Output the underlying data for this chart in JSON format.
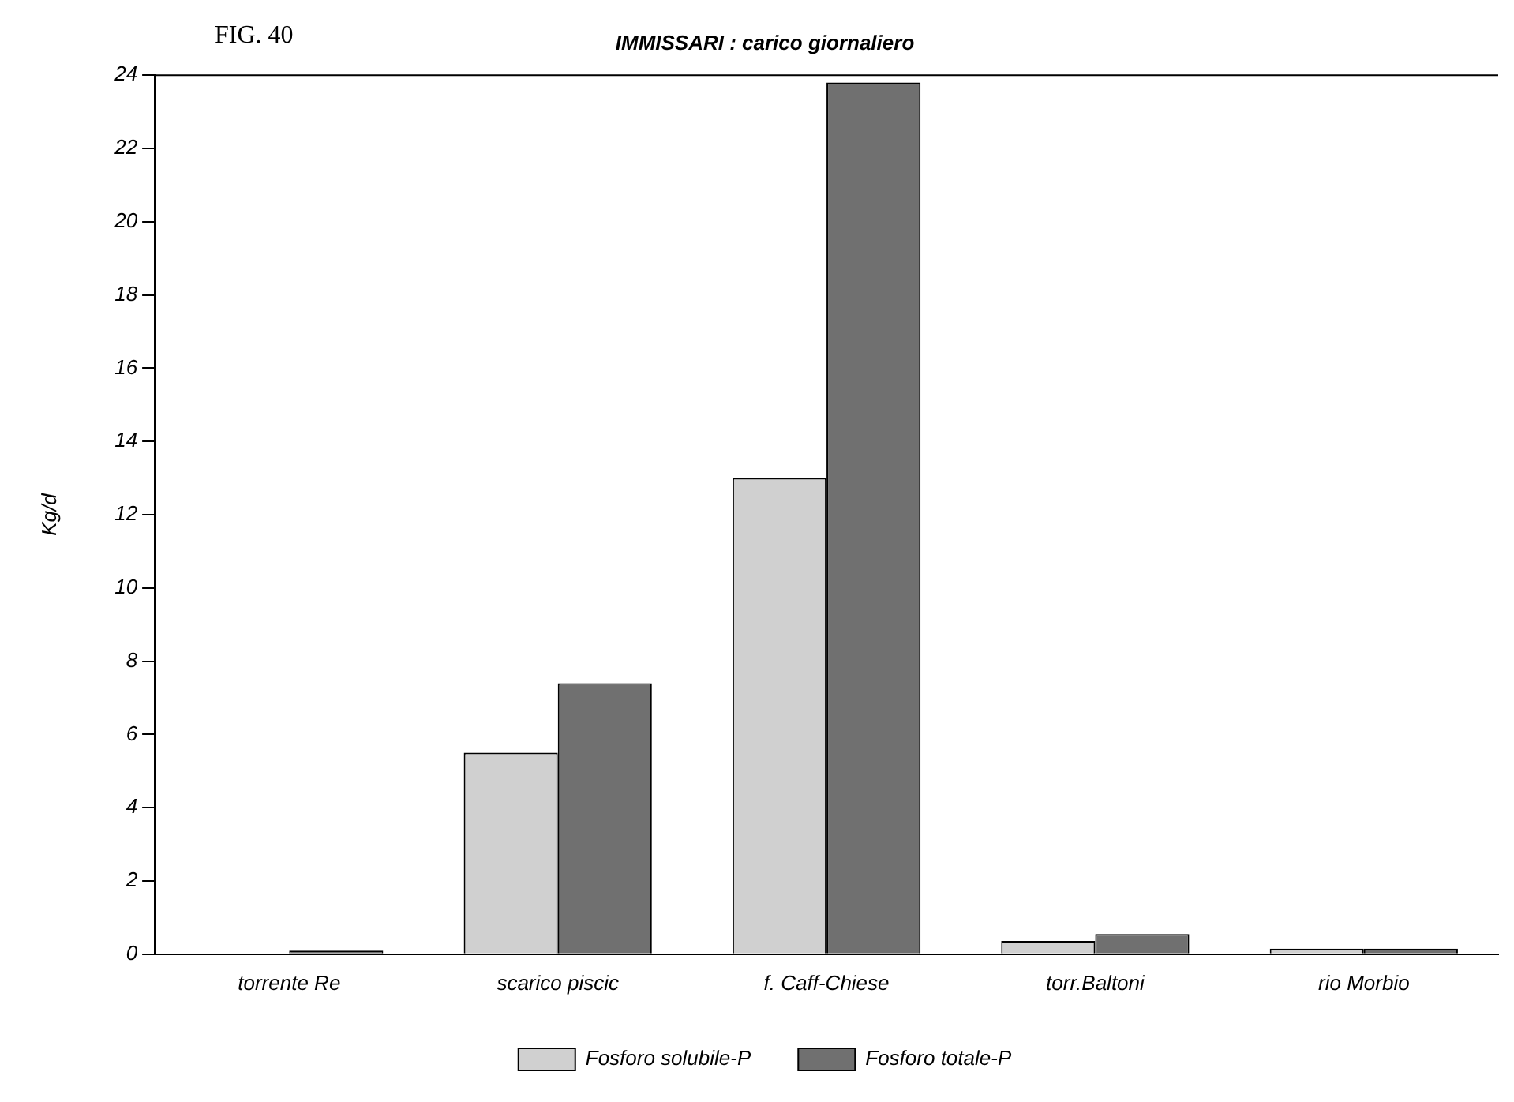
{
  "chart_data": {
    "type": "bar",
    "title": "IMMISSARI : carico giornaliero",
    "ylabel": "Kg/d",
    "annotations": [
      "FIG. 40"
    ],
    "categories": [
      "torrente Re",
      "scarico piscic",
      "f. Caff-Chiese",
      "torr.Baltoni",
      "rio Morbio"
    ],
    "series": [
      {
        "name": "Fosforo solubile-P",
        "color": "#d0d0d0",
        "values": [
          null,
          5.5,
          13,
          0.36,
          0.15
        ]
      },
      {
        "name": "Fosforo totale-P",
        "color": "#707070",
        "values": [
          0.1,
          7.4,
          23.8,
          0.55,
          0.15
        ]
      }
    ],
    "ylim": [
      0,
      24
    ],
    "yticks": [
      0,
      2,
      4,
      6,
      8,
      10,
      12,
      14,
      16,
      18,
      20,
      22,
      24
    ],
    "grid": false,
    "legend": "bottom"
  }
}
